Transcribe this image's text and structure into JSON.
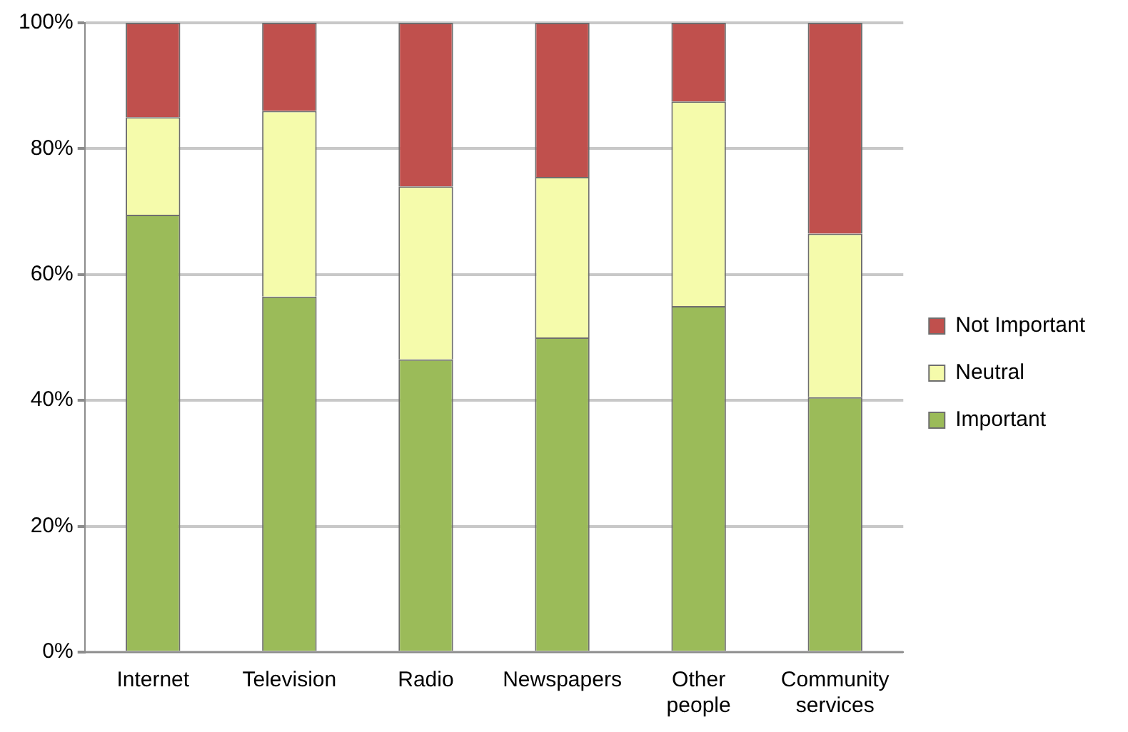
{
  "chart_data": {
    "type": "bar",
    "stacked": true,
    "categories": [
      "Internet",
      "Television",
      "Radio",
      "Newspapers",
      "Other people",
      "Community services"
    ],
    "series": [
      {
        "name": "Important",
        "color": "#9bbb59",
        "values": [
          69.5,
          56.5,
          46.5,
          50,
          55,
          40.5
        ]
      },
      {
        "name": "Neutral",
        "color": "#f5fbab",
        "values": [
          15.5,
          29.5,
          27.5,
          25.5,
          32.5,
          26
        ]
      },
      {
        "name": "Not Important",
        "color": "#c0504d",
        "values": [
          15,
          14,
          26,
          24.5,
          12.5,
          33.5
        ]
      }
    ],
    "ylim": [
      0,
      100
    ],
    "yticks": [
      {
        "value": 0,
        "label": "0%"
      },
      {
        "value": 20,
        "label": "20%"
      },
      {
        "value": 40,
        "label": "40%"
      },
      {
        "value": 60,
        "label": "60%"
      },
      {
        "value": 80,
        "label": "80%"
      },
      {
        "value": 100,
        "label": "100%"
      }
    ],
    "grid": "y",
    "legend": "right"
  }
}
